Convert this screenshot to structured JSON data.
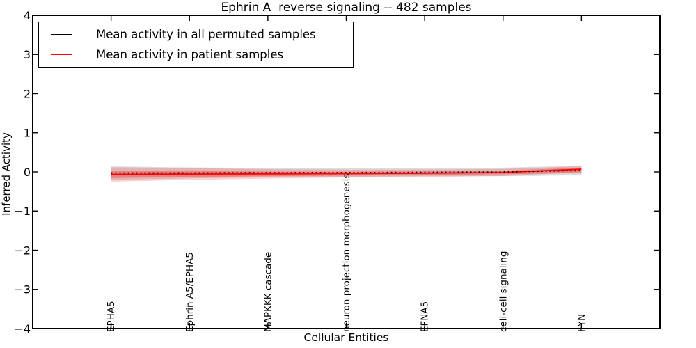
{
  "chart_data": {
    "type": "line",
    "title": "Ephrin A  reverse signaling -- 482 samples",
    "xlabel": "Cellular Entities",
    "ylabel": "Inferred Activity",
    "ylim": [
      -4,
      4
    ],
    "yticks": [
      4,
      3,
      2,
      1,
      0,
      -1,
      -2,
      -3,
      -4
    ],
    "ytick_labels": [
      "4",
      "3",
      "2",
      "1",
      "0",
      "−1",
      "−2",
      "−3",
      "−4"
    ],
    "categories": [
      "EPHA5",
      "Ephrin A5/EPHA5",
      "MAPKKK cascade",
      "neuron projection morphogenesis",
      "EFNA5",
      "cell-cell signaling",
      "FYN"
    ],
    "grid": false,
    "legend_position": "upper-left",
    "axis_color": "#000000",
    "background_color": "#ffffff",
    "series": [
      {
        "name": "Mean activity in all permuted samples",
        "color": "#000000",
        "line_style": "dotted",
        "values": [
          -0.03,
          -0.025,
          -0.02,
          -0.018,
          -0.012,
          0.0,
          0.035
        ],
        "band": {
          "upper": [
            0.14,
            0.115,
            0.1,
            0.092,
            0.088,
            0.11,
            0.155
          ],
          "lower": [
            -0.2,
            -0.165,
            -0.14,
            -0.128,
            -0.112,
            -0.11,
            -0.085
          ],
          "color": "#999999",
          "opacity": 0.35
        }
      },
      {
        "name": "Mean activity in patient samples",
        "color": "#ff0000",
        "line_style": "solid",
        "values": [
          -0.065,
          -0.055,
          -0.05,
          -0.045,
          -0.035,
          -0.015,
          0.07
        ],
        "band_outer": {
          "upper": [
            0.12,
            0.095,
            0.07,
            0.055,
            0.06,
            0.075,
            0.145
          ],
          "lower": [
            -0.25,
            -0.205,
            -0.17,
            -0.145,
            -0.13,
            -0.105,
            -0.005
          ],
          "color": "#ff0000",
          "opacity": 0.18
        },
        "band_inner": {
          "upper": [
            0.025,
            0.02,
            0.01,
            0.005,
            0.015,
            0.03,
            0.11
          ],
          "lower": [
            -0.155,
            -0.13,
            -0.11,
            -0.095,
            -0.085,
            -0.06,
            -0.03
          ],
          "color": "#ff0000",
          "opacity": 0.28
        }
      }
    ]
  }
}
